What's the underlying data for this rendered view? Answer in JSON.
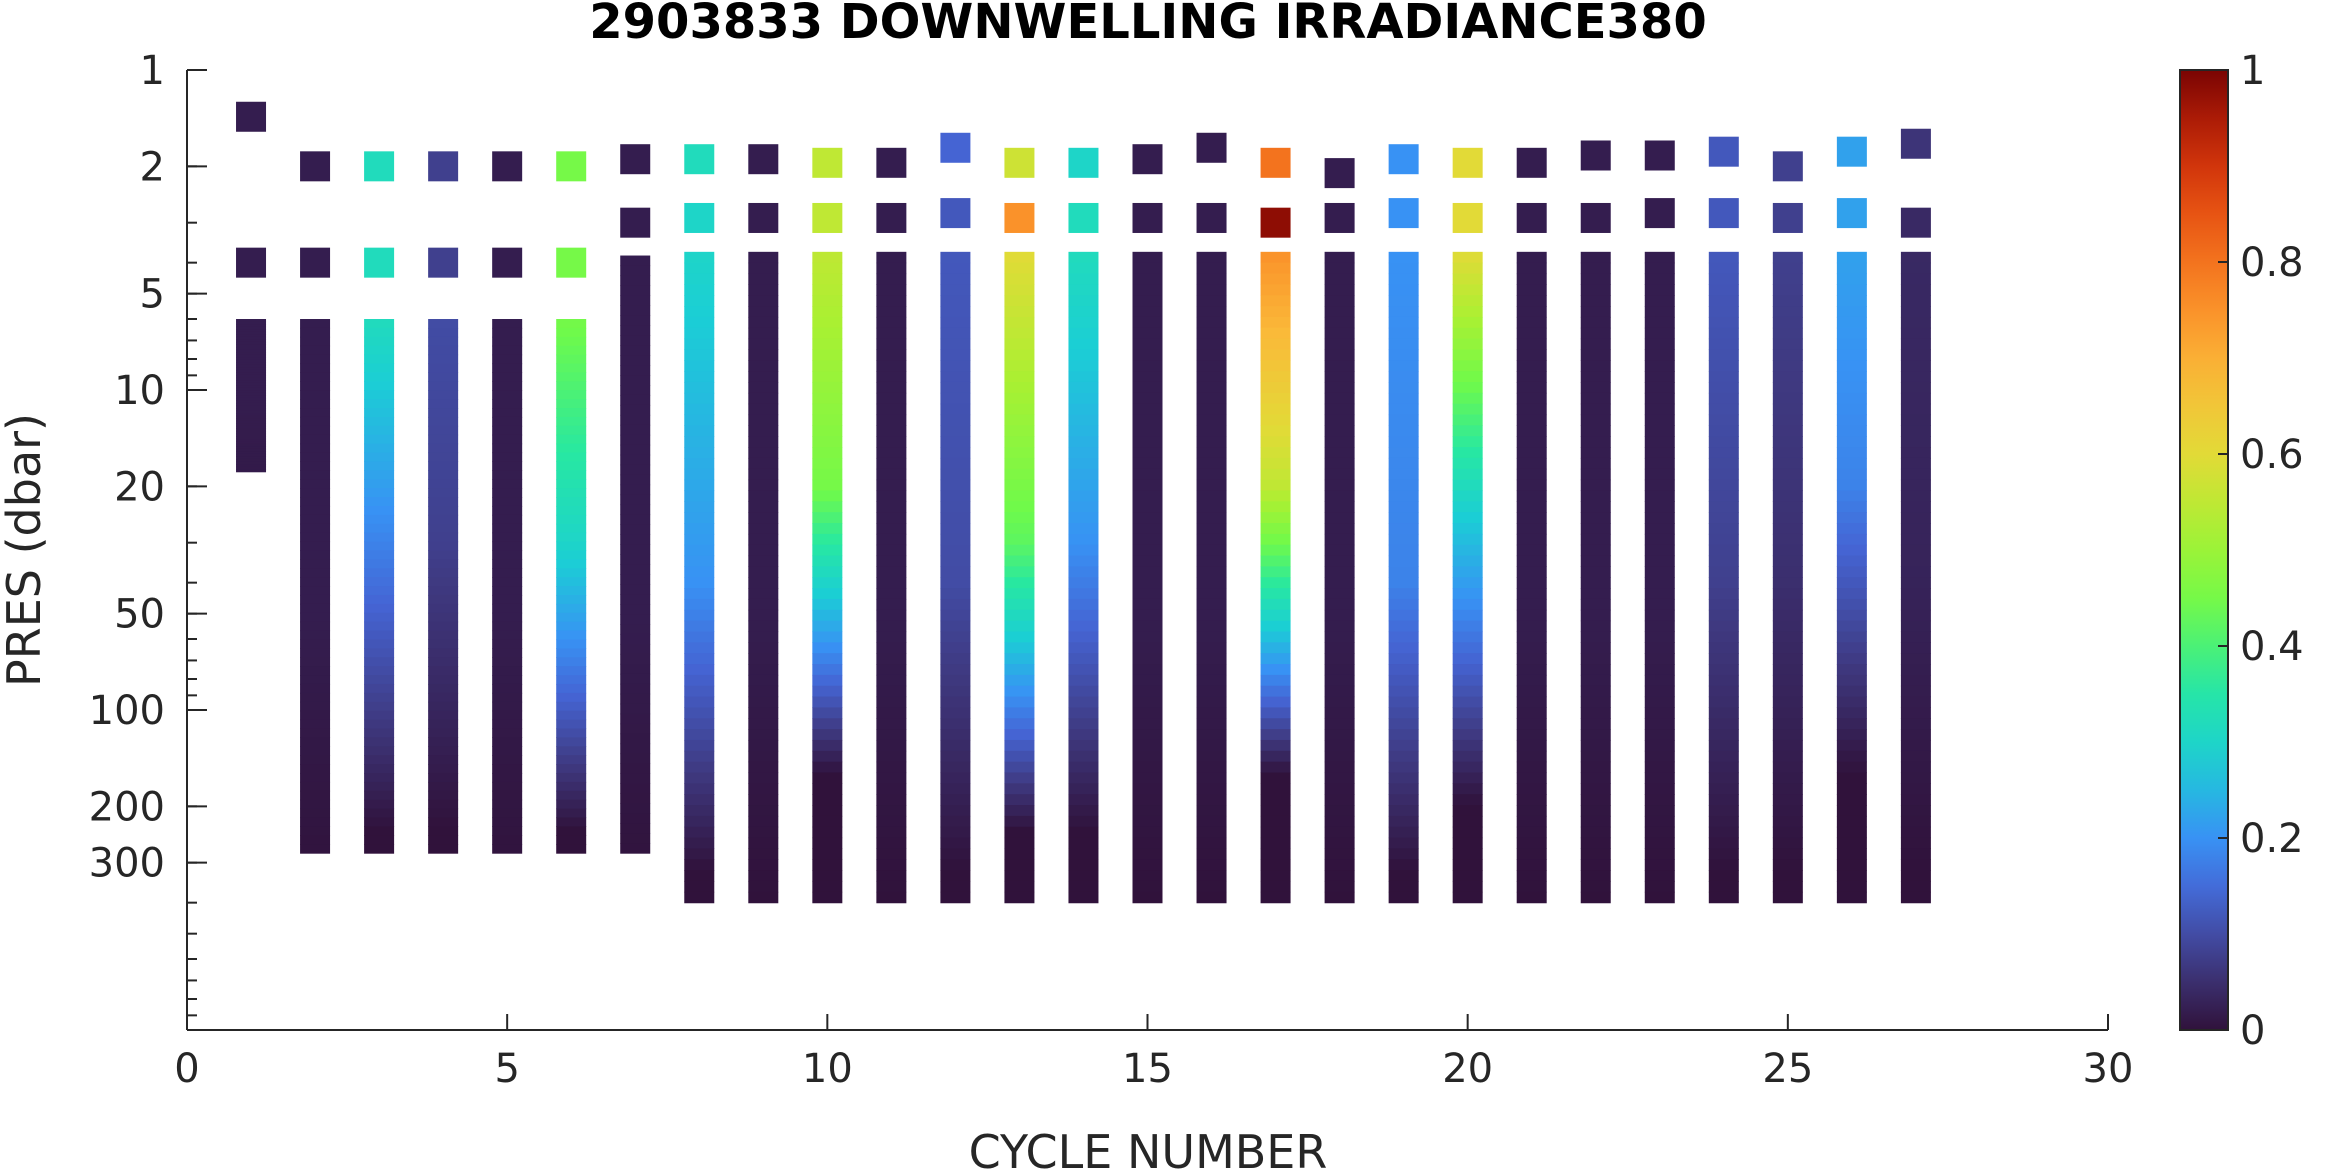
{
  "chart_data": {
    "type": "heatmap",
    "title": "2903833  DOWNWELLING IRRADIANCE380",
    "xlabel": "CYCLE NUMBER",
    "ylabel": "PRES (dbar)",
    "xlim": [
      0,
      30
    ],
    "ylim": [
      1,
      1000
    ],
    "yscale": "log",
    "yreverse": true,
    "grid": false,
    "x_ticks": [
      0,
      5,
      10,
      15,
      20,
      25,
      30
    ],
    "x_tick_labels": [
      "0",
      "5",
      "10",
      "15",
      "20",
      "25",
      "30"
    ],
    "y_ticks": [
      1,
      2,
      5,
      10,
      20,
      50,
      100,
      200,
      300
    ],
    "y_tick_labels": [
      "1",
      "2",
      "5",
      "10",
      "20",
      "50",
      "100",
      "200",
      "300"
    ],
    "colorbar": {
      "colormap": "turbo",
      "clim": [
        0,
        1
      ],
      "ticks": [
        0,
        0.2,
        0.4,
        0.6,
        0.8,
        1
      ],
      "tick_labels": [
        "0",
        "0.2",
        "0.4",
        "0.6",
        "0.8",
        "1"
      ]
    },
    "profiles": [
      {
        "cycle": 1,
        "surface": [
          1.4,
          0.02
        ],
        "near": [
          null,
          null
        ],
        "mid": [
          4,
          0.02
        ],
        "start_pres": 6,
        "end_pres": 18,
        "top_value": 0.02,
        "mid_value": 0.02,
        "mid_pres": 10
      },
      {
        "cycle": 2,
        "surface": [
          2.0,
          0.02
        ],
        "near": [
          null,
          null
        ],
        "mid": [
          4,
          0.02
        ],
        "start_pres": 6,
        "end_pres": 280,
        "top_value": 0.02,
        "mid_value": 0.02,
        "mid_pres": 50
      },
      {
        "cycle": 3,
        "surface": [
          2.0,
          0.32
        ],
        "near": [
          null,
          null
        ],
        "mid": [
          4,
          0.32
        ],
        "start_pres": 6,
        "end_pres": 280,
        "top_value": 0.32,
        "mid_value": 0.18,
        "mid_pres": 30
      },
      {
        "cycle": 4,
        "surface": [
          2.0,
          0.08
        ],
        "near": [
          null,
          null
        ],
        "mid": [
          4,
          0.08
        ],
        "start_pres": 6,
        "end_pres": 280,
        "top_value": 0.1,
        "mid_value": 0.08,
        "mid_pres": 30
      },
      {
        "cycle": 5,
        "surface": [
          2.0,
          0.02
        ],
        "near": [
          null,
          null
        ],
        "mid": [
          4,
          0.02
        ],
        "start_pres": 6,
        "end_pres": 280,
        "top_value": 0.02,
        "mid_value": 0.02,
        "mid_pres": 50
      },
      {
        "cycle": 6,
        "surface": [
          2.0,
          0.45
        ],
        "near": [
          null,
          null
        ],
        "mid": [
          4,
          0.45
        ],
        "start_pres": 6,
        "end_pres": 280,
        "top_value": 0.45,
        "mid_value": 0.3,
        "mid_pres": 30
      },
      {
        "cycle": 7,
        "surface": [
          1.9,
          0.02
        ],
        "near": [
          3,
          0.02
        ],
        "mid": [
          null,
          null
        ],
        "start_pres": 3.8,
        "end_pres": 280,
        "top_value": 0.02,
        "mid_value": 0.02,
        "mid_pres": 50
      },
      {
        "cycle": 8,
        "surface": [
          1.9,
          0.32
        ],
        "near": [
          2.9,
          0.3
        ],
        "mid": [
          null,
          null
        ],
        "start_pres": 3.7,
        "end_pres": 400,
        "top_value": 0.3,
        "mid_value": 0.2,
        "mid_pres": 40
      },
      {
        "cycle": 9,
        "surface": [
          1.9,
          0.02
        ],
        "near": [
          2.9,
          0.02
        ],
        "mid": [
          null,
          null
        ],
        "start_pres": 3.7,
        "end_pres": 400,
        "top_value": 0.02,
        "mid_value": 0.02,
        "mid_pres": 50
      },
      {
        "cycle": 10,
        "surface": [
          1.95,
          0.55
        ],
        "near": [
          2.9,
          0.55
        ],
        "mid": [
          null,
          null
        ],
        "start_pres": 3.7,
        "end_pres": 400,
        "top_value": 0.55,
        "mid_value": 0.45,
        "mid_pres": 20
      },
      {
        "cycle": 11,
        "surface": [
          1.95,
          0.02
        ],
        "near": [
          2.9,
          0.02
        ],
        "mid": [
          null,
          null
        ],
        "start_pres": 3.7,
        "end_pres": 400,
        "top_value": 0.02,
        "mid_value": 0.02,
        "mid_pres": 50
      },
      {
        "cycle": 12,
        "surface": [
          1.75,
          0.14
        ],
        "near": [
          2.8,
          0.12
        ],
        "mid": [
          null,
          null
        ],
        "start_pres": 3.7,
        "end_pres": 400,
        "top_value": 0.12,
        "mid_value": 0.1,
        "mid_pres": 40
      },
      {
        "cycle": 13,
        "surface": [
          1.95,
          0.57
        ],
        "near": [
          2.9,
          0.75
        ],
        "mid": [
          null,
          null
        ],
        "start_pres": 3.7,
        "end_pres": 400,
        "top_value": 0.6,
        "mid_value": 0.42,
        "mid_pres": 30
      },
      {
        "cycle": 14,
        "surface": [
          1.95,
          0.3
        ],
        "near": [
          2.9,
          0.32
        ],
        "mid": [
          null,
          null
        ],
        "start_pres": 3.7,
        "end_pres": 400,
        "top_value": 0.32,
        "mid_value": 0.2,
        "mid_pres": 30
      },
      {
        "cycle": 15,
        "surface": [
          1.9,
          0.02
        ],
        "near": [
          2.9,
          0.02
        ],
        "mid": [
          null,
          null
        ],
        "start_pres": 3.7,
        "end_pres": 400,
        "top_value": 0.02,
        "mid_value": 0.02,
        "mid_pres": 50
      },
      {
        "cycle": 16,
        "surface": [
          1.75,
          0.02
        ],
        "near": [
          2.9,
          0.02
        ],
        "mid": [
          null,
          null
        ],
        "start_pres": 3.7,
        "end_pres": 400,
        "top_value": 0.02,
        "mid_value": 0.02,
        "mid_pres": 50
      },
      {
        "cycle": 17,
        "surface": [
          1.95,
          0.8
        ],
        "near": [
          3.0,
          0.98
        ],
        "mid": [
          null,
          null
        ],
        "start_pres": 3.7,
        "end_pres": 400,
        "top_value": 0.75,
        "mid_value": 0.55,
        "mid_pres": 20
      },
      {
        "cycle": 18,
        "surface": [
          2.1,
          0.02
        ],
        "near": [
          2.9,
          0.02
        ],
        "mid": [
          null,
          null
        ],
        "start_pres": 3.7,
        "end_pres": 400,
        "top_value": 0.02,
        "mid_value": 0.02,
        "mid_pres": 50
      },
      {
        "cycle": 19,
        "surface": [
          1.9,
          0.2
        ],
        "near": [
          2.8,
          0.2
        ],
        "mid": [
          null,
          null
        ],
        "start_pres": 3.7,
        "end_pres": 400,
        "top_value": 0.2,
        "mid_value": 0.18,
        "mid_pres": 40
      },
      {
        "cycle": 20,
        "surface": [
          1.95,
          0.6
        ],
        "near": [
          2.9,
          0.6
        ],
        "mid": [
          null,
          null
        ],
        "start_pres": 3.7,
        "end_pres": 400,
        "top_value": 0.6,
        "mid_value": 0.28,
        "mid_pres": 25
      },
      {
        "cycle": 21,
        "surface": [
          1.95,
          0.02
        ],
        "near": [
          2.9,
          0.02
        ],
        "mid": [
          null,
          null
        ],
        "start_pres": 3.7,
        "end_pres": 400,
        "top_value": 0.02,
        "mid_value": 0.02,
        "mid_pres": 50
      },
      {
        "cycle": 22,
        "surface": [
          1.85,
          0.02
        ],
        "near": [
          2.9,
          0.02
        ],
        "mid": [
          null,
          null
        ],
        "start_pres": 3.7,
        "end_pres": 400,
        "top_value": 0.02,
        "mid_value": 0.02,
        "mid_pres": 50
      },
      {
        "cycle": 23,
        "surface": [
          1.85,
          0.02
        ],
        "near": [
          2.8,
          0.02
        ],
        "mid": [
          null,
          null
        ],
        "start_pres": 3.7,
        "end_pres": 400,
        "top_value": 0.02,
        "mid_value": 0.02,
        "mid_pres": 50
      },
      {
        "cycle": 24,
        "surface": [
          1.8,
          0.12
        ],
        "near": [
          2.8,
          0.12
        ],
        "mid": [
          null,
          null
        ],
        "start_pres": 3.7,
        "end_pres": 400,
        "top_value": 0.12,
        "mid_value": 0.08,
        "mid_pres": 40
      },
      {
        "cycle": 25,
        "surface": [
          2.0,
          0.08
        ],
        "near": [
          2.9,
          0.08
        ],
        "mid": [
          null,
          null
        ],
        "start_pres": 3.7,
        "end_pres": 400,
        "top_value": 0.08,
        "mid_value": 0.05,
        "mid_pres": 40
      },
      {
        "cycle": 26,
        "surface": [
          1.8,
          0.22
        ],
        "near": [
          2.8,
          0.22
        ],
        "mid": [
          null,
          null
        ],
        "start_pres": 3.7,
        "end_pres": 400,
        "top_value": 0.22,
        "mid_value": 0.18,
        "mid_pres": 20
      },
      {
        "cycle": 27,
        "surface": [
          1.7,
          0.06
        ],
        "near": [
          3.0,
          0.04
        ],
        "mid": [
          null,
          null
        ],
        "start_pres": 3.7,
        "end_pres": 400,
        "top_value": 0.04,
        "mid_value": 0.03,
        "mid_pres": 40
      }
    ]
  }
}
